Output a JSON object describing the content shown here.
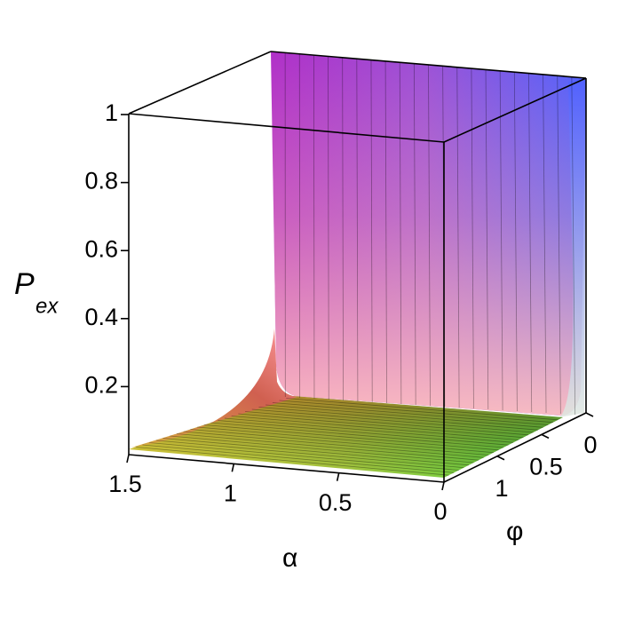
{
  "chart_data": {
    "type": "surface3d",
    "zlabel": "P",
    "zlabel_sub": "ex",
    "xlabel": "α",
    "ylabel": "φ",
    "xlim": [
      0,
      1.5
    ],
    "xticks": [
      0,
      0.5,
      1,
      1.5
    ],
    "ylim": [
      0,
      1.6
    ],
    "yticks": [
      0,
      0.5,
      1
    ],
    "zlim": [
      0,
      1
    ],
    "zticks": [
      0.2,
      0.4,
      0.6,
      0.8,
      1
    ]
  }
}
